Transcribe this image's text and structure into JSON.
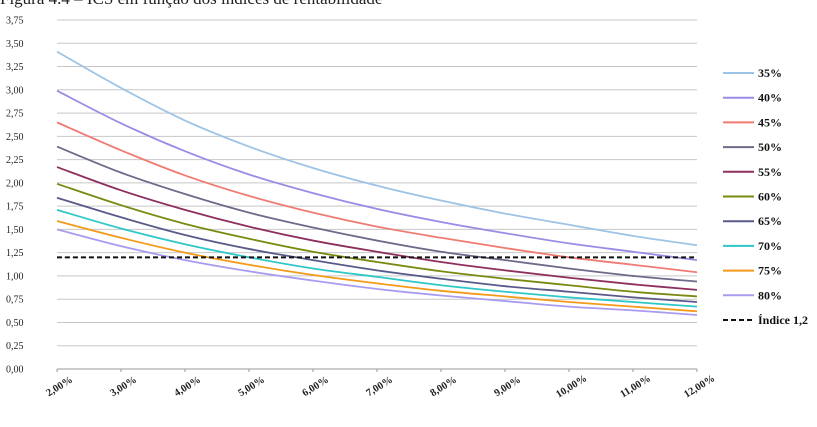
{
  "caption": "Figura 4.4 – ICS em função dos índices de rentabilidade",
  "chart_data": {
    "type": "line",
    "title": "",
    "xlabel": "",
    "ylabel": "",
    "x": [
      2,
      3,
      4,
      5,
      6,
      7,
      8,
      9,
      10,
      11,
      12
    ],
    "x_tick_labels": [
      "2,00%",
      "3,00%",
      "4,00%",
      "5,00%",
      "6,00%",
      "7,00%",
      "8,00%",
      "9,00%",
      "10,00%",
      "11,00%",
      "12,00%"
    ],
    "ylim": [
      0,
      3.75
    ],
    "y_ticks": [
      0,
      0.25,
      0.5,
      0.75,
      1,
      1.25,
      1.5,
      1.75,
      2,
      2.25,
      2.5,
      2.75,
      3,
      3.25,
      3.5,
      3.75
    ],
    "y_tick_labels": [
      "0,00",
      "0,25",
      "0,50",
      "0,75",
      "1,00",
      "1,25",
      "1,50",
      "1,75",
      "2,00",
      "2,25",
      "2,50",
      "2,75",
      "3,00",
      "3,25",
      "3,50",
      "3,75"
    ],
    "grid": true,
    "legend_position": "right",
    "series": [
      {
        "name": "35%",
        "color": "#9dc3e6",
        "values": [
          3.41,
          3.02,
          2.67,
          2.39,
          2.16,
          1.97,
          1.81,
          1.67,
          1.55,
          1.43,
          1.33
        ]
      },
      {
        "name": "40%",
        "color": "#9b8ae6",
        "values": [
          2.99,
          2.64,
          2.34,
          2.09,
          1.89,
          1.72,
          1.58,
          1.46,
          1.35,
          1.26,
          1.17
        ]
      },
      {
        "name": "45%",
        "color": "#f07b72",
        "values": [
          2.65,
          2.35,
          2.08,
          1.86,
          1.68,
          1.53,
          1.41,
          1.3,
          1.2,
          1.12,
          1.04
        ]
      },
      {
        "name": "50%",
        "color": "#6f6a8a",
        "values": [
          2.39,
          2.11,
          1.88,
          1.68,
          1.52,
          1.38,
          1.26,
          1.17,
          1.08,
          1.0,
          0.94
        ]
      },
      {
        "name": "55%",
        "color": "#8e2f5e",
        "values": [
          2.17,
          1.92,
          1.71,
          1.53,
          1.38,
          1.26,
          1.15,
          1.06,
          0.98,
          0.91,
          0.85
        ]
      },
      {
        "name": "60%",
        "color": "#7a8a10",
        "values": [
          1.99,
          1.76,
          1.56,
          1.4,
          1.26,
          1.15,
          1.05,
          0.97,
          0.9,
          0.83,
          0.78
        ]
      },
      {
        "name": "65%",
        "color": "#5a5a8a",
        "values": [
          1.84,
          1.63,
          1.44,
          1.29,
          1.17,
          1.06,
          0.97,
          0.89,
          0.83,
          0.77,
          0.72
        ]
      },
      {
        "name": "70%",
        "color": "#2fc7c7",
        "values": [
          1.71,
          1.51,
          1.34,
          1.2,
          1.08,
          0.99,
          0.9,
          0.83,
          0.77,
          0.72,
          0.67
        ]
      },
      {
        "name": "75%",
        "color": "#f29a1a",
        "values": [
          1.59,
          1.41,
          1.25,
          1.12,
          1.01,
          0.92,
          0.84,
          0.78,
          0.72,
          0.67,
          0.62
        ]
      },
      {
        "name": "80%",
        "color": "#a99cf0",
        "values": [
          1.5,
          1.32,
          1.17,
          1.05,
          0.95,
          0.86,
          0.79,
          0.73,
          0.67,
          0.63,
          0.58
        ]
      },
      {
        "name": "Índice 1,2",
        "color": "#111111",
        "dashed": true,
        "values": [
          1.2,
          1.2,
          1.2,
          1.2,
          1.2,
          1.2,
          1.2,
          1.2,
          1.2,
          1.2,
          1.2
        ]
      }
    ]
  }
}
